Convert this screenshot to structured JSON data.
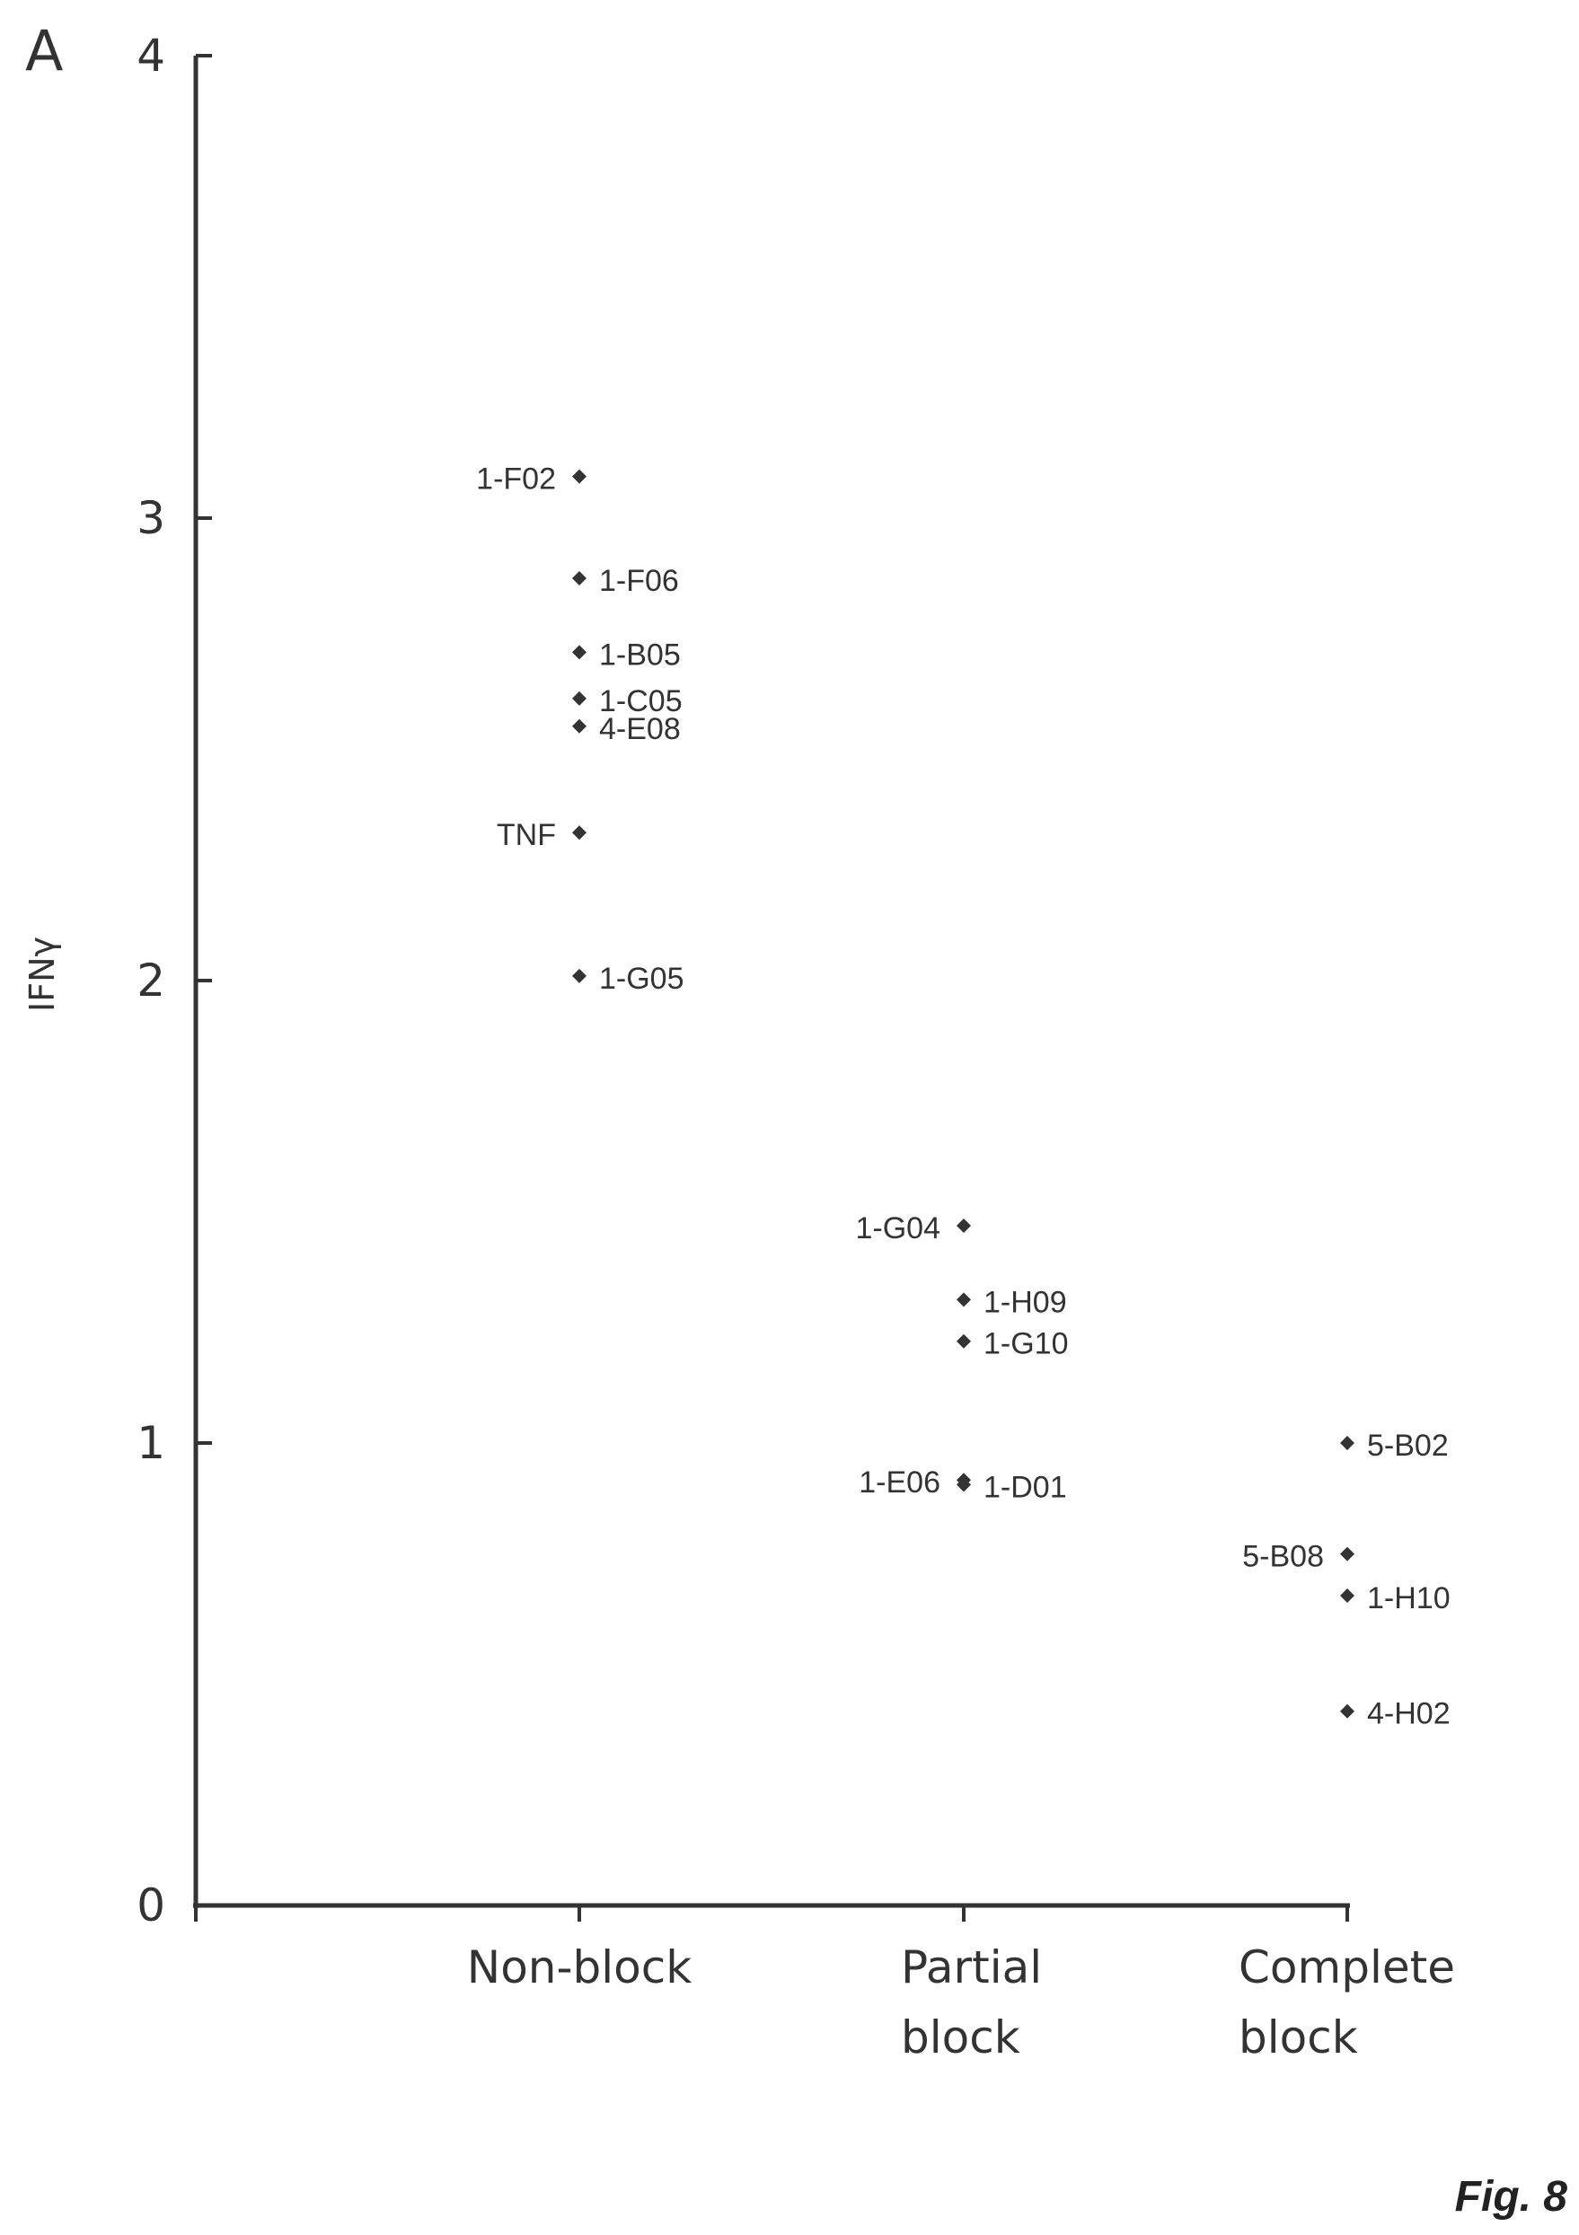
{
  "panel_label": "A",
  "figure_label": "Fig. 8",
  "chart_data": {
    "type": "scatter",
    "title": "",
    "xlabel": "",
    "ylabel": "IFNγ",
    "ylim": [
      0,
      4
    ],
    "yticks": [
      "0",
      "1",
      "2",
      "3",
      "4"
    ],
    "categories": [
      {
        "id": "nonblock",
        "lines": [
          "Non-block"
        ]
      },
      {
        "id": "partial",
        "lines": [
          "Partial",
          "block"
        ]
      },
      {
        "id": "complete",
        "lines": [
          "Complete",
          "block"
        ]
      }
    ],
    "grid": false,
    "legend": "none",
    "marker_color": "#333333",
    "points": [
      {
        "category": "nonblock",
        "label": "1-F02",
        "y": 3.09,
        "label_side": "left"
      },
      {
        "category": "nonblock",
        "label": "1-F06",
        "y": 2.87,
        "label_side": "right"
      },
      {
        "category": "nonblock",
        "label": "1-B05",
        "y": 2.71,
        "label_side": "right"
      },
      {
        "category": "nonblock",
        "label": "1-C05",
        "y": 2.61,
        "label_side": "right"
      },
      {
        "category": "nonblock",
        "label": "4-E08",
        "y": 2.55,
        "label_side": "right"
      },
      {
        "category": "nonblock",
        "label": "TNF",
        "y": 2.32,
        "label_side": "left"
      },
      {
        "category": "nonblock",
        "label": "1-G05",
        "y": 2.01,
        "label_side": "right"
      },
      {
        "category": "partial",
        "label": "1-G04",
        "y": 1.47,
        "label_side": "left"
      },
      {
        "category": "partial",
        "label": "1-H09",
        "y": 1.31,
        "label_side": "right"
      },
      {
        "category": "partial",
        "label": "1-G10",
        "y": 1.22,
        "label_side": "right"
      },
      {
        "category": "partial",
        "label": "1-E06",
        "y": 0.92,
        "label_side": "left"
      },
      {
        "category": "partial",
        "label": "1-D01",
        "y": 0.91,
        "label_side": "right"
      },
      {
        "category": "complete",
        "label": "5-B02",
        "y": 1.0,
        "label_side": "right"
      },
      {
        "category": "complete",
        "label": "5-B08",
        "y": 0.76,
        "label_side": "left"
      },
      {
        "category": "complete",
        "label": "1-H10",
        "y": 0.67,
        "label_side": "right"
      },
      {
        "category": "complete",
        "label": "4-H02",
        "y": 0.42,
        "label_side": "right"
      }
    ]
  }
}
